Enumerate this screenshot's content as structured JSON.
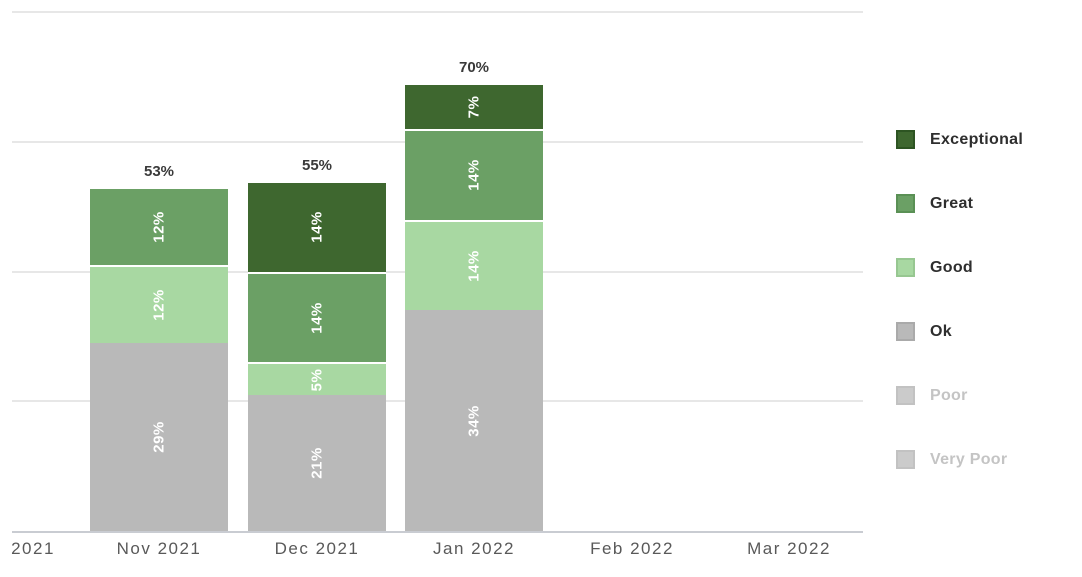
{
  "chart_data": {
    "type": "bar",
    "stacked": true,
    "title": "",
    "xlabel": "",
    "ylabel": "",
    "grid": true,
    "legend_position": "right",
    "ylim_visible": [
      0,
      82
    ],
    "y_gridlines_pct": [
      20,
      40,
      60,
      80
    ],
    "x_axis_labels": [
      "2021",
      "Nov 2021",
      "Dec 2021",
      "Jan 2022",
      "Feb 2022",
      "Mar 2022"
    ],
    "series_order_bottom_to_top": [
      "Ok",
      "Good",
      "Great",
      "Exceptional"
    ],
    "bars": [
      {
        "category": "Nov 2021",
        "total_label": "53%",
        "segments": [
          {
            "series": "Ok",
            "pct": 29,
            "label": "29%"
          },
          {
            "series": "Good",
            "pct": 12,
            "label": "12%"
          },
          {
            "series": "Great",
            "pct": 12,
            "label": "12%"
          }
        ]
      },
      {
        "category": "Dec 2021",
        "total_label": "55%",
        "segments": [
          {
            "series": "Ok",
            "pct": 21,
            "label": "21%"
          },
          {
            "series": "Good",
            "pct": 5,
            "label": "5%"
          },
          {
            "series": "Great",
            "pct": 14,
            "label": "14%"
          },
          {
            "series": "Exceptional",
            "pct": 14,
            "label": "14%"
          }
        ]
      },
      {
        "category": "Jan 2022",
        "total_label": "70%",
        "segments": [
          {
            "series": "Ok",
            "pct": 34,
            "label": "34%"
          },
          {
            "series": "Good",
            "pct": 14,
            "label": "14%"
          },
          {
            "series": "Great",
            "pct": 14,
            "label": "14%"
          },
          {
            "series": "Exceptional",
            "pct": 7,
            "label": "7%"
          }
        ]
      }
    ]
  },
  "legend": {
    "items": [
      {
        "label": "Exceptional",
        "color": "#3e672f",
        "border": "#2d5422",
        "enabled": true
      },
      {
        "label": "Great",
        "color": "#6ba065",
        "border": "#5a9055",
        "enabled": true
      },
      {
        "label": "Good",
        "color": "#a8d8a2",
        "border": "#97c791",
        "enabled": true
      },
      {
        "label": "Ok",
        "color": "#b9b9b9",
        "border": "#aaaaaa",
        "enabled": true
      },
      {
        "label": "Poor",
        "color": "#cbcbcb",
        "border": "#c2c2c2",
        "enabled": false
      },
      {
        "label": "Very Poor",
        "color": "#cbcbcb",
        "border": "#c2c2c2",
        "enabled": false
      }
    ]
  },
  "colors": {
    "background": "#ffffff",
    "series": {
      "Exceptional": "#3e672f",
      "Great": "#6ba065",
      "Good": "#a8d8a2",
      "Ok": "#b9b9b9"
    },
    "gridline": "#e7e7e7",
    "axis_line": "#c9ccd2",
    "x_axis_label_text": "#595959",
    "total_label_text": "#3a3a3a",
    "segment_label_text": "#ffffff",
    "legend_text": "#2e2e2e",
    "legend_text_disabled": "#c4c4c4"
  }
}
